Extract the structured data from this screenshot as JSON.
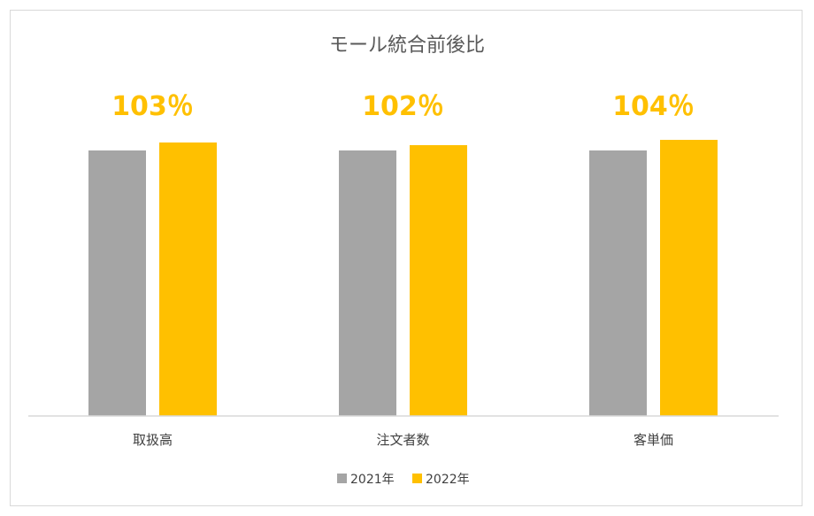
{
  "chart_data": {
    "type": "bar",
    "title": "モール統合前後比",
    "categories": [
      "取扱高",
      "注文者数",
      "客単価"
    ],
    "series": [
      {
        "name": "2021年",
        "color": "#a5a5a5",
        "values": [
          100,
          100,
          100
        ]
      },
      {
        "name": "2022年",
        "color": "#ffc000",
        "values": [
          103,
          102,
          104
        ]
      }
    ],
    "data_labels": [
      "103％",
      "102％",
      "104％"
    ],
    "ylim": [
      0,
      105
    ],
    "legend": "bottom",
    "grid": false
  }
}
